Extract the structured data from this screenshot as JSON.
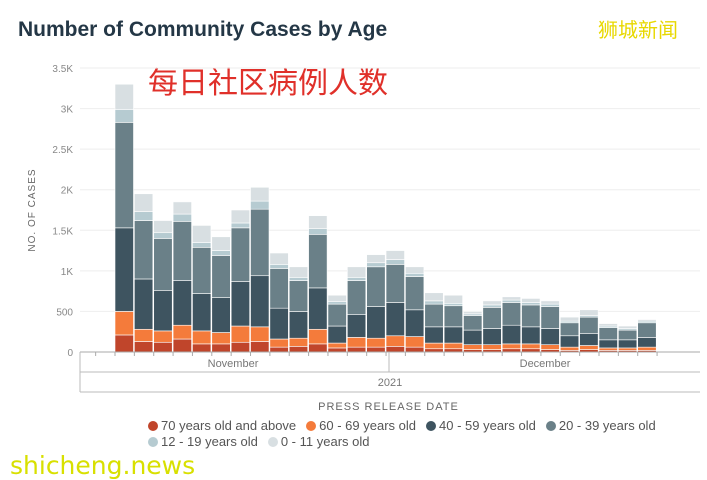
{
  "title": "Number of Community Cases by Age",
  "overlay_text": "每日社区病例人数",
  "watermarks": {
    "top": "狮城新闻",
    "bottom": "shicheng.news"
  },
  "chart_data": {
    "type": "bar",
    "stacked": true,
    "title": "Number of Community Cases by Age",
    "xlabel": "PRESS RELEASE DATE",
    "ylabel": "NO. OF CASES",
    "ylim": [
      0,
      3500
    ],
    "yticks": [
      0,
      500,
      1000,
      1500,
      2000,
      2500,
      3000,
      3500
    ],
    "ytick_labels": [
      "0",
      "500",
      "1K",
      "1.5K",
      "2K",
      "2.5K",
      "3K",
      "3.5K"
    ],
    "x_month_labels": [
      "November",
      "December"
    ],
    "x_year_label": "2021",
    "grid": true,
    "legend_position": "bottom",
    "series": [
      {
        "name": "70 years old and above",
        "color": "#c0452b",
        "values": [
          210,
          130,
          120,
          160,
          100,
          100,
          120,
          130,
          60,
          70,
          100,
          50,
          60,
          60,
          70,
          60,
          40,
          40,
          30,
          30,
          40,
          40,
          30,
          20,
          30,
          20,
          20,
          20
        ]
      },
      {
        "name": "60 - 69 years old",
        "color": "#f47b3b",
        "values": [
          290,
          150,
          140,
          170,
          160,
          140,
          200,
          180,
          100,
          100,
          180,
          60,
          120,
          110,
          130,
          130,
          70,
          70,
          60,
          60,
          60,
          60,
          60,
          40,
          50,
          30,
          30,
          40
        ]
      },
      {
        "name": "40 - 59 years old",
        "color": "#3e5460",
        "values": [
          1030,
          620,
          500,
          550,
          460,
          430,
          550,
          630,
          380,
          330,
          510,
          210,
          280,
          390,
          410,
          330,
          200,
          200,
          180,
          200,
          230,
          210,
          200,
          140,
          150,
          100,
          100,
          120
        ]
      },
      {
        "name": "20 - 39 years old",
        "color": "#6a8088",
        "values": [
          1300,
          720,
          640,
          730,
          570,
          520,
          660,
          820,
          490,
          380,
          660,
          270,
          420,
          490,
          470,
          410,
          280,
          260,
          180,
          260,
          280,
          270,
          270,
          160,
          200,
          150,
          120,
          180
        ]
      },
      {
        "name": "12 - 19 years old",
        "color": "#b6cbd1",
        "values": [
          160,
          110,
          70,
          90,
          60,
          60,
          60,
          100,
          50,
          40,
          70,
          30,
          40,
          50,
          60,
          40,
          40,
          30,
          20,
          30,
          30,
          30,
          30,
          20,
          20,
          20,
          20,
          20
        ]
      },
      {
        "name": "0 - 11 years old",
        "color": "#d8dfe2",
        "values": [
          310,
          220,
          150,
          150,
          210,
          170,
          160,
          170,
          140,
          130,
          160,
          80,
          130,
          100,
          110,
          80,
          100,
          100,
          30,
          50,
          40,
          50,
          40,
          50,
          70,
          30,
          30,
          20
        ]
      }
    ]
  }
}
